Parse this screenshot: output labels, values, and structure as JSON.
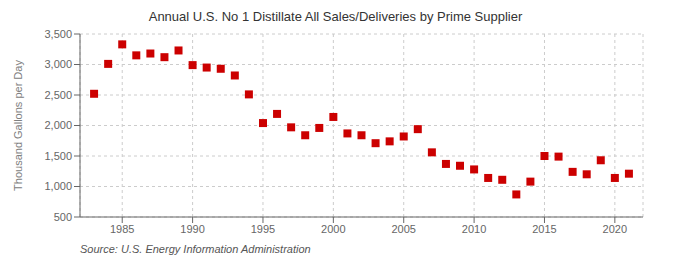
{
  "chart_data": {
    "type": "scatter",
    "title": "Annual U.S. No 1 Distillate All Sales/Deliveries by Prime Supplier",
    "y_label": "Thousand Gallons per Day",
    "annotations": [
      "Source: U.S. Energy Information Administration"
    ],
    "x": [
      1983,
      1984,
      1985,
      1986,
      1987,
      1988,
      1989,
      1990,
      1991,
      1992,
      1993,
      1994,
      1995,
      1996,
      1997,
      1998,
      1999,
      2000,
      2001,
      2002,
      2003,
      2004,
      2005,
      2006,
      2007,
      2008,
      2009,
      2010,
      2011,
      2012,
      2013,
      2014,
      2015,
      2016,
      2017,
      2018,
      2019,
      2020,
      2021
    ],
    "values": [
      2520,
      3010,
      3330,
      3150,
      3180,
      3120,
      3230,
      2990,
      2950,
      2930,
      2820,
      2510,
      2040,
      2190,
      1970,
      1840,
      1960,
      2140,
      1870,
      1840,
      1710,
      1740,
      1820,
      1940,
      1560,
      1370,
      1340,
      1280,
      1140,
      1110,
      870,
      1080,
      1500,
      1490,
      1240,
      1200,
      1430,
      1140,
      1210
    ],
    "color": "#cc0000",
    "marker": "square",
    "xlim": [
      1982,
      2022
    ],
    "xticks": [
      1985,
      1990,
      1995,
      2000,
      2005,
      2010,
      2015,
      2020
    ],
    "ylim": [
      500,
      3500
    ],
    "yticks": [
      500,
      {
        "value": 1000,
        "label": "1,000"
      },
      {
        "value": 1500,
        "label": "1,500"
      },
      {
        "value": 2000,
        "label": "2,000"
      },
      {
        "value": 2500,
        "label": "2,500"
      },
      {
        "value": 3000,
        "label": "3,000"
      },
      {
        "value": 3500,
        "label": "3,500"
      }
    ],
    "grid": true
  }
}
